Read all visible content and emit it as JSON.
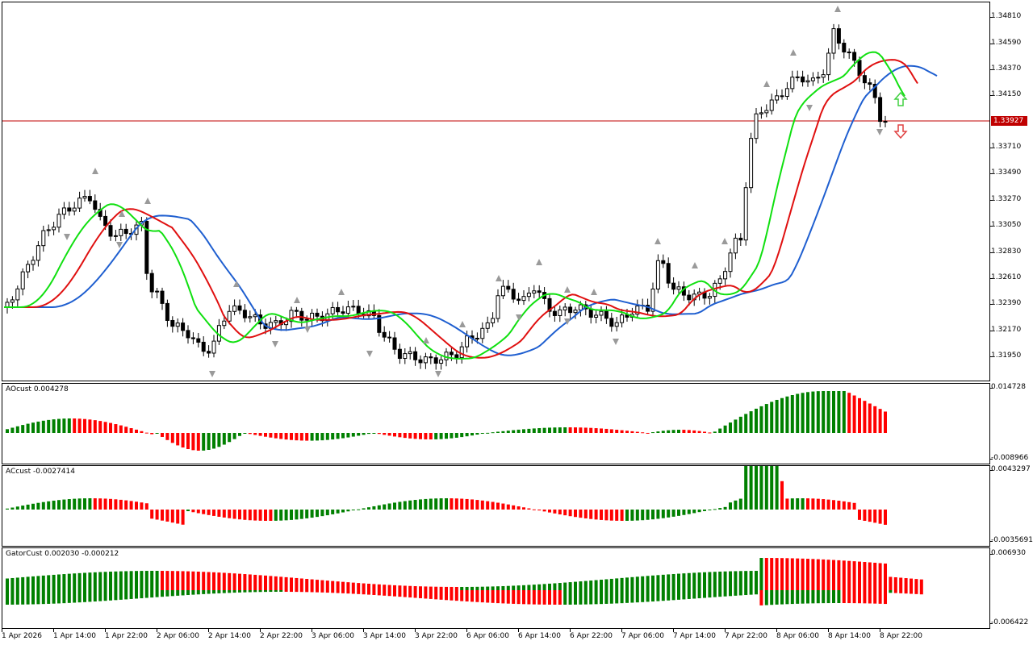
{
  "main": {
    "price_levels": [
      "1.34810",
      "1.34590",
      "1.34370",
      "1.34150",
      "1.33710",
      "1.33490",
      "1.33270",
      "1.33050",
      "1.32830",
      "1.32610",
      "1.32390",
      "1.32170",
      "1.31950"
    ],
    "current_price": "1.33927",
    "colors": {
      "bull": "#ffffff",
      "bear": "#000000",
      "jaw": "#1f5fd0",
      "teeth": "#e01010",
      "lips": "#10e010",
      "price_line": "#c00000",
      "fractal": "#9a9a9a"
    },
    "arrow_icons": [
      "up-arrow-icon",
      "down-arrow-icon"
    ]
  },
  "ao": {
    "label": "AOcust 0.004278",
    "scale": [
      "0.014728",
      "-0.008966"
    ]
  },
  "ac": {
    "label": "ACcust -0.0027414",
    "scale": [
      "0.0043297",
      "-0.0035691"
    ]
  },
  "gator": {
    "label": "GatorCust 0.002030 -0.000212",
    "scale": [
      "0.006930",
      "-0.006422"
    ]
  },
  "time_labels": [
    "1 Apr 2026",
    "1 Apr 14:00",
    "1 Apr 22:00",
    "2 Apr 06:00",
    "2 Apr 14:00",
    "2 Apr 22:00",
    "3 Apr 06:00",
    "3 Apr 14:00",
    "3 Apr 22:00",
    "6 Apr 06:00",
    "6 Apr 14:00",
    "6 Apr 22:00",
    "7 Apr 06:00",
    "7 Apr 14:00",
    "7 Apr 22:00",
    "8 Apr 06:00",
    "8 Apr 14:00",
    "8 Apr 22:00"
  ]
}
